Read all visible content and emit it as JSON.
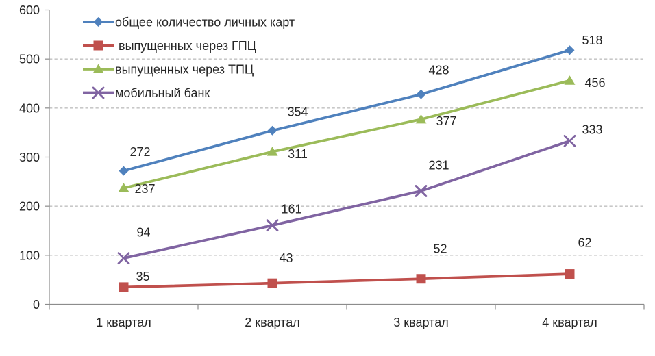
{
  "chart_data": {
    "type": "line",
    "title": "",
    "categories": [
      "1 квартал",
      "2 квартал",
      "3 квартал",
      "4 квартал"
    ],
    "series": [
      {
        "name": "общее количество личных карт",
        "marker": "diamond",
        "color": "#4F81BD",
        "values": [
          272,
          354,
          428,
          518
        ]
      },
      {
        "name": " выпущенных через ГПЦ",
        "marker": "square",
        "color": "#C0504D",
        "values": [
          35,
          43,
          52,
          62
        ]
      },
      {
        "name": "выпущенных через ТПЦ",
        "marker": "triangle",
        "color": "#9BBB59",
        "values": [
          237,
          311,
          377,
          456
        ]
      },
      {
        "name": "мобильный банк",
        "marker": "x",
        "color": "#8064A2",
        "values": [
          94,
          161,
          231,
          333
        ]
      }
    ],
    "xlabel": "",
    "ylabel": "",
    "ylim": [
      0,
      600
    ],
    "ytick_interval": 100,
    "yticks": [
      0,
      100,
      200,
      300,
      400,
      500,
      600
    ],
    "grid": "horizontal dashed",
    "legend_position": "inside top-left",
    "data_labels": true
  },
  "style": {
    "grid_color": "#A6A6A6",
    "axis_color": "#8C8C8C",
    "text_color": "#262626",
    "background": "#FFFFFF"
  }
}
